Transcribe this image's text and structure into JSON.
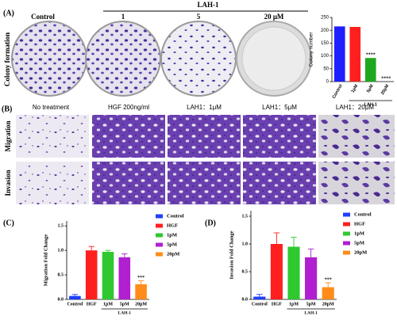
{
  "figure": {
    "panels": [
      "(A)",
      "(B)",
      "(C)",
      "(D)"
    ],
    "colony_header": {
      "control": "Control",
      "group": "LAH-1",
      "doses": [
        "1",
        "5",
        "20 μM"
      ]
    },
    "colony_row_label": "Colony formation",
    "assay_columns": [
      "No treatment",
      "HGF 200ng/ml",
      "LAH1：1μM",
      "LAH1：5μM",
      "LAH1：20μM"
    ],
    "assay_rows": [
      "Migration",
      "Invasion"
    ]
  },
  "chart_data": [
    {
      "type": "bar",
      "y_label": "Colony number",
      "categories": [
        "Control",
        "1μM",
        "5μM",
        "20μM"
      ],
      "values": [
        215,
        213,
        92,
        0
      ],
      "colors": [
        "#1f1fff",
        "#ff1f1f",
        "#1fa81f",
        "#a01fbf"
      ],
      "ylim": [
        0,
        250
      ],
      "yticks": [
        0,
        50,
        100,
        150,
        200,
        250
      ],
      "annotations": [
        {
          "text": "****",
          "category": "5μM"
        },
        {
          "text": "****",
          "category": "20μM"
        }
      ],
      "group": {
        "label": "LAH-1",
        "categories": [
          "1μM",
          "5μM",
          "20μM"
        ]
      }
    },
    {
      "type": "bar",
      "y_label": "Migration Fold Change",
      "categories": [
        "Control",
        "HGF",
        "1pM",
        "5pM",
        "20pM"
      ],
      "values": [
        0.07,
        1.0,
        0.97,
        0.86,
        0.31
      ],
      "errors": [
        0.03,
        0.08,
        0.03,
        0.07,
        0.07
      ],
      "colors": [
        "#1f3fff",
        "#ff1f1f",
        "#2fc82f",
        "#b01fd0",
        "#ff8c1a"
      ],
      "ylim": [
        0,
        1.6
      ],
      "yticks": [
        {
          "value": 0,
          "label": "0.0"
        },
        {
          "value": 0.5,
          "label": "0.5"
        },
        {
          "value": 1,
          "label": "1.0"
        },
        {
          "value": 1.5,
          "label": "1.5"
        }
      ],
      "legend": true,
      "annotations": [
        {
          "text": "***",
          "category": "20pM"
        }
      ],
      "group": {
        "label": "LAH-1",
        "categories": [
          "1pM",
          "5pM",
          "20pM"
        ]
      }
    },
    {
      "type": "bar",
      "y_label": "Invasion Fold Change",
      "categories": [
        "Control",
        "HGF",
        "1pM",
        "5pM",
        "20pM"
      ],
      "values": [
        0.05,
        1.0,
        0.95,
        0.76,
        0.22
      ],
      "errors": [
        0.04,
        0.2,
        0.17,
        0.15,
        0.08
      ],
      "colors": [
        "#1f3fff",
        "#ff1f1f",
        "#2fc82f",
        "#b01fd0",
        "#ff8c1a"
      ],
      "ylim": [
        0,
        1.6
      ],
      "yticks": [
        {
          "value": 0,
          "label": "0.0"
        },
        {
          "value": 0.5,
          "label": "0.5"
        },
        {
          "value": 1,
          "label": "1.0"
        },
        {
          "value": 1.5,
          "label": "1.5"
        }
      ],
      "legend": true,
      "annotations": [
        {
          "text": "***",
          "category": "20pM"
        }
      ],
      "group": {
        "label": "LAH-1",
        "categories": [
          "1pM",
          "5pM",
          "20pM"
        ]
      }
    }
  ]
}
